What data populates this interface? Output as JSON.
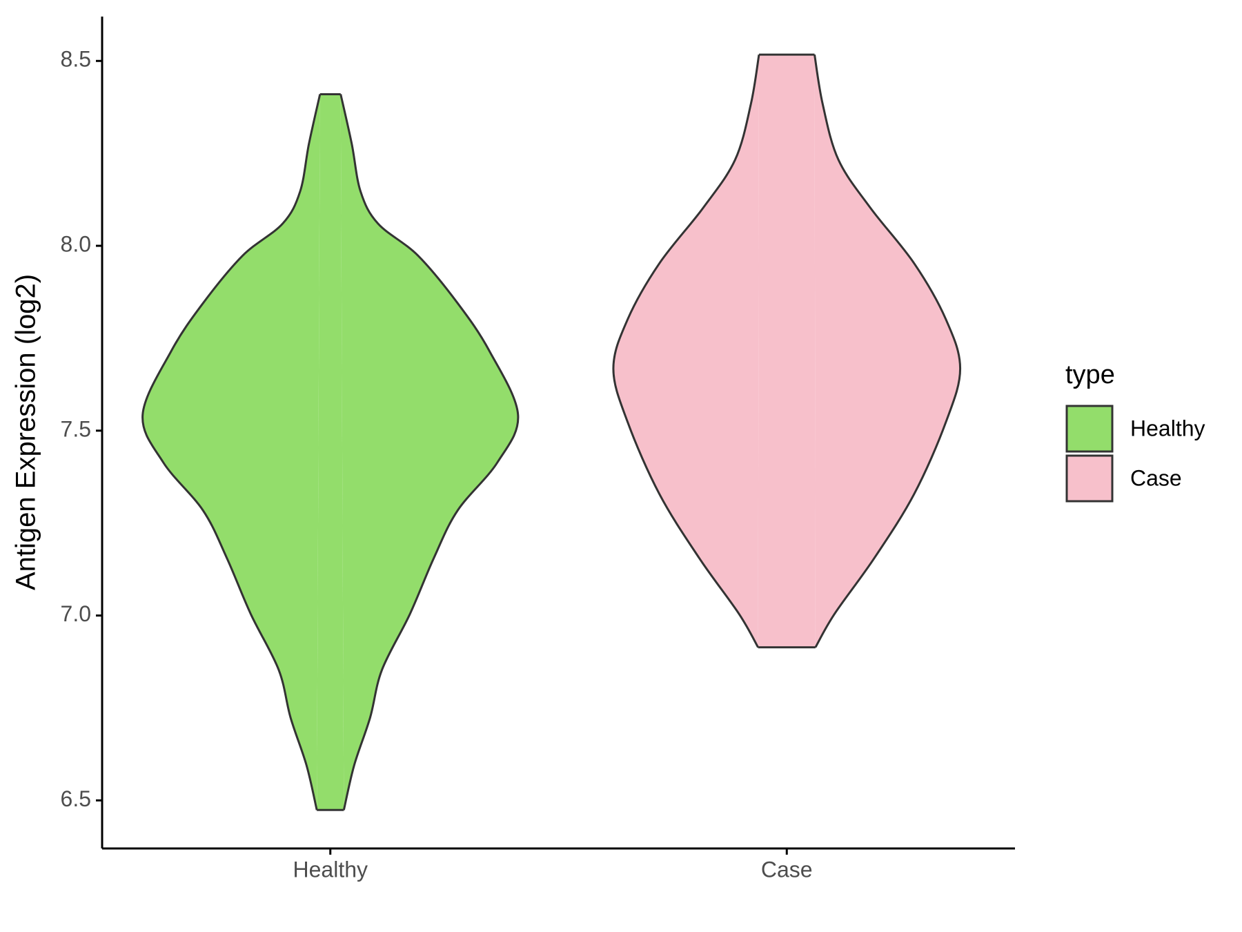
{
  "chart_data": {
    "type": "violin",
    "y_label": "Antigen Expression (log2)",
    "categories": [
      "Healthy",
      "Case"
    ],
    "legend_title": "type",
    "legend_position": "right",
    "series": [
      {
        "name": "Healthy",
        "color": "#93dd6b",
        "y": [
          8.41,
          8.276,
          8.147,
          8.06,
          7.974,
          7.845,
          7.716,
          7.543,
          7.414,
          7.284,
          7.155,
          7.004,
          6.853,
          6.724,
          6.595,
          6.474
        ],
        "density": [
          0.055,
          0.114,
          0.161,
          0.254,
          0.466,
          0.678,
          0.847,
          1,
          0.89,
          0.678,
          0.551,
          0.424,
          0.275,
          0.212,
          0.127,
          0.072
        ]
      },
      {
        "name": "Case",
        "color": "#f7c0cb",
        "y": [
          8.517,
          8.384,
          8.233,
          8.103,
          7.953,
          7.802,
          7.668,
          7.522,
          7.328,
          7.155,
          7.004,
          6.914
        ],
        "density": [
          0.148,
          0.191,
          0.275,
          0.445,
          0.678,
          0.847,
          0.924,
          0.847,
          0.678,
          0.466,
          0.254,
          0.153
        ]
      }
    ],
    "ylim": [
      6.37,
      8.62
    ],
    "yticks": [
      {
        "value": 6.5,
        "label": "6.5"
      },
      {
        "value": 7,
        "label": "7.0"
      },
      {
        "value": 7.5,
        "label": "7.5"
      },
      {
        "value": 8,
        "label": "8.0"
      },
      {
        "value": 8.5,
        "label": "8.5"
      }
    ],
    "grid": false
  }
}
